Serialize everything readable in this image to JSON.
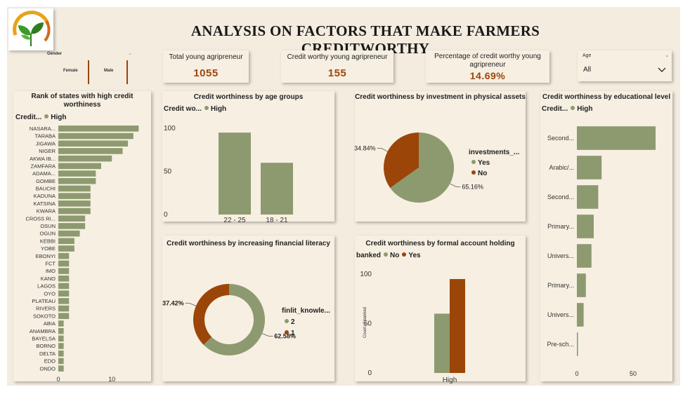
{
  "colors": {
    "green": "#8d9a6f",
    "brown": "#9c4508",
    "bg": "#f3ecdf",
    "card": "#f6efe2",
    "accent": "#a0450c"
  },
  "header": {
    "title": "ANALYSIS ON FACTORS THAT MAKE FARMERS CREDITWORTHY",
    "logo_icon": "leaf-logo-icon"
  },
  "slicers": {
    "gender": {
      "label": "Gender",
      "options": [
        "Female",
        "Male"
      ]
    },
    "age": {
      "label": "Age",
      "value": "All"
    }
  },
  "kpis": [
    {
      "label": "Total young agripreneur",
      "value": "1055"
    },
    {
      "label": "Credit worthy young agripreneur",
      "value": "155"
    },
    {
      "label": "Percentage of credit worthy young agripreneur",
      "value": "14.69%"
    }
  ],
  "chart_data": [
    {
      "id": "states",
      "type": "bar",
      "orientation": "horizontal",
      "title": "Rank of states with high credit worthiness",
      "legend_title": "Credit...",
      "legend": [
        "High"
      ],
      "categories": [
        "NASARA...",
        "TARABA",
        "JIGAWA",
        "NIGER",
        "AKWA IB...",
        "ZAMFARA",
        "ADAMA...",
        "GOMBE",
        "BAUCHI",
        "KADUNA",
        "KATSINA",
        "KWARA",
        "CROSS RI...",
        "OSUN",
        "OGUN",
        "KEBBI",
        "YOBE",
        "EBONYI",
        "FCT",
        "IMO",
        "KANO",
        "LAGOS",
        "OYO",
        "PLATEAU",
        "RIVERS",
        "SOKOTO",
        "ABIA",
        "ANAMBRA",
        "BAYELSA",
        "BORNO",
        "DELTA",
        "EDO",
        "ONDO"
      ],
      "values": [
        15,
        14,
        13,
        12,
        10,
        8,
        7,
        7,
        6,
        6,
        6,
        6,
        5,
        5,
        4,
        3,
        3,
        2,
        2,
        2,
        2,
        2,
        2,
        2,
        2,
        2,
        1,
        1,
        1,
        1,
        1,
        1,
        1
      ],
      "xticks": [
        0,
        10
      ],
      "xlim": [
        0,
        16
      ]
    },
    {
      "id": "age_groups",
      "type": "bar",
      "title": "Credit worthiness by age groups",
      "legend_title": "Credit wo...",
      "legend": [
        "High"
      ],
      "categories": [
        "22 - 25",
        "18 - 21"
      ],
      "values": [
        95,
        60
      ],
      "yticks": [
        0,
        50,
        100
      ],
      "ylim": [
        0,
        100
      ]
    },
    {
      "id": "physical_assets",
      "type": "pie",
      "title": "Credit worthiness by investment in physical assets",
      "legend_title": "investments_...",
      "labels": [
        "Yes",
        "No"
      ],
      "values": [
        65.16,
        34.84
      ],
      "data_labels": [
        "65.16%",
        "34.84%"
      ]
    },
    {
      "id": "education",
      "type": "bar",
      "orientation": "horizontal",
      "title": "Credit worthiness by educational level",
      "legend_title": "Credit...",
      "legend": [
        "High"
      ],
      "categories": [
        "Second...",
        "Arabic/...",
        "Second...",
        "Primary...",
        "Univers...",
        "Primary...",
        "Univers...",
        "Pre-sch..."
      ],
      "values": [
        70,
        22,
        19,
        15,
        13,
        8,
        6,
        1
      ],
      "xticks": [
        0,
        50
      ],
      "xlim": [
        0,
        80
      ]
    },
    {
      "id": "financial_literacy",
      "type": "pie",
      "donut": true,
      "title": "Credit worthiness by increasing financial literacy",
      "legend_title": "finlit_knowle...",
      "labels": [
        "2",
        "1"
      ],
      "values": [
        62.58,
        37.42
      ],
      "data_labels": [
        "62.58%",
        "37.42%"
      ]
    },
    {
      "id": "account_holding",
      "type": "bar",
      "title": "Credit worthiness by formal account holding",
      "legend_title": "banked",
      "categories": [
        "High"
      ],
      "series": [
        {
          "name": "No",
          "values": [
            60
          ]
        },
        {
          "name": "Yes",
          "values": [
            95
          ]
        }
      ],
      "ylabel": "Count of banked",
      "yticks": [
        0,
        50,
        100
      ],
      "ylim": [
        0,
        100
      ]
    }
  ]
}
